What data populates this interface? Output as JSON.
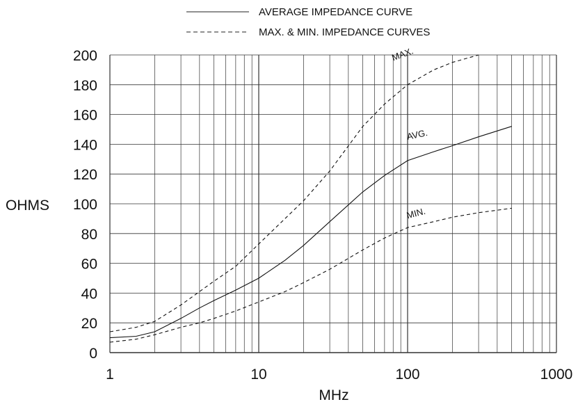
{
  "chart_data": {
    "type": "line",
    "xlabel": "MHz",
    "ylabel": "OHMS",
    "xscale": "log",
    "xlim": [
      1,
      1000
    ],
    "ylim": [
      0,
      200
    ],
    "grid": true,
    "legend_placement": "top",
    "xticks": [
      1,
      10,
      100,
      1000
    ],
    "xtick_labels": [
      "1",
      "10",
      "100",
      "1000"
    ],
    "yticks": [
      0,
      20,
      40,
      60,
      80,
      100,
      120,
      140,
      160,
      180,
      200
    ],
    "ytick_labels": [
      "0",
      "20",
      "40",
      "60",
      "80",
      "100",
      "120",
      "140",
      "160",
      "180",
      "200"
    ],
    "legend": [
      {
        "label": "AVERAGE IMPEDANCE CURVE",
        "style": "solid"
      },
      {
        "label": "MAX. & MIN. IMPEDANCE CURVES",
        "style": "dashed"
      }
    ],
    "series": [
      {
        "name": "MAX.",
        "style": "dashed",
        "x": [
          1,
          1.5,
          2,
          3,
          4,
          5,
          7,
          10,
          15,
          20,
          30,
          50,
          70,
          100,
          150,
          200,
          300
        ],
        "y": [
          14,
          17,
          21,
          32,
          41,
          48,
          58,
          73,
          90,
          102,
          122,
          152,
          167,
          180,
          190,
          195,
          201
        ]
      },
      {
        "name": "AVG.",
        "style": "solid",
        "x": [
          1,
          1.5,
          2,
          3,
          4,
          5,
          7,
          10,
          15,
          20,
          30,
          50,
          70,
          100,
          150,
          200,
          300,
          500
        ],
        "y": [
          10,
          11,
          14,
          23,
          30,
          35,
          42,
          50,
          62,
          72,
          88,
          108,
          119,
          129,
          135,
          139,
          145,
          152
        ]
      },
      {
        "name": "MIN.",
        "style": "dashed",
        "x": [
          1,
          1.5,
          2,
          3,
          4,
          5,
          7,
          10,
          15,
          20,
          30,
          50,
          70,
          100,
          150,
          200,
          300,
          500
        ],
        "y": [
          7,
          9,
          12,
          17,
          20,
          23,
          28,
          34,
          41,
          47,
          56,
          69,
          77,
          84,
          88,
          91,
          94,
          97
        ]
      }
    ],
    "annotations": [
      {
        "text": "MAX.",
        "series": "MAX."
      },
      {
        "text": "AVG.",
        "series": "AVG."
      },
      {
        "text": "MIN.",
        "series": "MIN."
      }
    ]
  }
}
